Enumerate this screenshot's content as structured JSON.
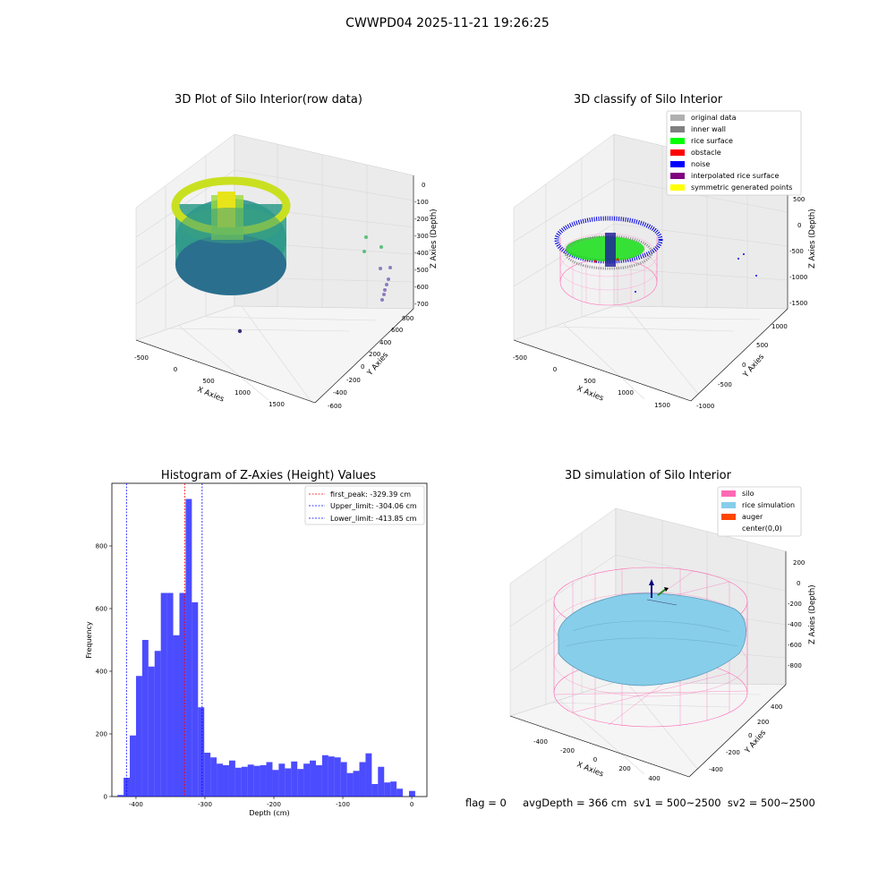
{
  "suptitle": "CWWPD04 2025-11-21 19:26:25",
  "footer": "flag = 0     avgDepth = 366 cm  sv1 = 500~2500  sv2 = 500~2500",
  "panel1": {
    "title": "3D Plot of Silo Interior(row data)",
    "xlabel": "X Axies",
    "ylabel": "Y Axies",
    "zlabel": "Z Axies (Depth)",
    "xticks": [
      "-500",
      "0",
      "500",
      "1000",
      "1500"
    ],
    "yticks": [
      "-600",
      "-400",
      "-200",
      "0",
      "200",
      "400",
      "600",
      "800"
    ],
    "zticks": [
      "0",
      "-100",
      "-200",
      "-300",
      "-400",
      "-500",
      "-600",
      "-700"
    ]
  },
  "panel2": {
    "title": "3D classify of Silo Interior",
    "xlabel": "X Axies",
    "ylabel": "Y Axies",
    "zlabel": "Z Axies (Depth)",
    "xticks": [
      "-500",
      "0",
      "500",
      "1000",
      "1500"
    ],
    "yticks": [
      "-1000",
      "-500",
      "0",
      "500",
      "1000"
    ],
    "zticks": [
      "500",
      "0",
      "-500",
      "-1000",
      "-1500"
    ],
    "legend": [
      {
        "label": "original data",
        "color": "#b0b0b0"
      },
      {
        "label": "inner wall",
        "color": "#808080"
      },
      {
        "label": "rice surface",
        "color": "#00ff00"
      },
      {
        "label": "obstacle",
        "color": "#ff0000"
      },
      {
        "label": "noise",
        "color": "#0000ff"
      },
      {
        "label": "interpolated rice surface",
        "color": "#800080"
      },
      {
        "label": "symmetric generated points",
        "color": "#ffff00"
      }
    ]
  },
  "panel4": {
    "title": "3D simulation of Silo Interior",
    "xlabel": "X Axies",
    "ylabel": "Y Axies",
    "zlabel": "Z Axies (Depth)",
    "xticks": [
      "-400",
      "-200",
      "0",
      "200",
      "400"
    ],
    "yticks": [
      "-400",
      "-200",
      "0",
      "200",
      "400"
    ],
    "zticks": [
      "200",
      "0",
      "-200",
      "-400",
      "-600",
      "-800"
    ],
    "legend": [
      {
        "label": "silo",
        "color": "#ff69b4"
      },
      {
        "label": "rice simulation",
        "color": "#87ceeb"
      },
      {
        "label": "auger",
        "color": "#ff4500"
      },
      {
        "label": "center(0,0)",
        "color": "#ffffff"
      }
    ]
  },
  "chart_data": {
    "type": "bar",
    "title": "Histogram of Z-Axies (Height) Values",
    "xlabel": "Depth (cm)",
    "ylabel": "Frequency",
    "xlim": [
      -435,
      22
    ],
    "ylim": [
      0,
      1000
    ],
    "xticks": [
      -400,
      -300,
      -200,
      -100,
      0
    ],
    "yticks": [
      0,
      200,
      400,
      600,
      800
    ],
    "bar_color": "#0000ff",
    "bins": [
      {
        "x0": -427,
        "x1": -418,
        "value": 5
      },
      {
        "x0": -418,
        "x1": -409,
        "value": 60
      },
      {
        "x0": -409,
        "x1": -400,
        "value": 195
      },
      {
        "x0": -400,
        "x1": -391,
        "value": 385
      },
      {
        "x0": -391,
        "x1": -382,
        "value": 500
      },
      {
        "x0": -382,
        "x1": -373,
        "value": 415
      },
      {
        "x0": -373,
        "x1": -364,
        "value": 465
      },
      {
        "x0": -364,
        "x1": -355,
        "value": 650
      },
      {
        "x0": -355,
        "x1": -346,
        "value": 650
      },
      {
        "x0": -346,
        "x1": -337,
        "value": 515
      },
      {
        "x0": -337,
        "x1": -328,
        "value": 650
      },
      {
        "x0": -328,
        "x1": -319,
        "value": 950
      },
      {
        "x0": -319,
        "x1": -310,
        "value": 620
      },
      {
        "x0": -310,
        "x1": -301,
        "value": 285
      },
      {
        "x0": -301,
        "x1": -292,
        "value": 140
      },
      {
        "x0": -292,
        "x1": -283,
        "value": 125
      },
      {
        "x0": -283,
        "x1": -274,
        "value": 105
      },
      {
        "x0": -274,
        "x1": -265,
        "value": 100
      },
      {
        "x0": -265,
        "x1": -256,
        "value": 115
      },
      {
        "x0": -256,
        "x1": -247,
        "value": 92
      },
      {
        "x0": -247,
        "x1": -238,
        "value": 95
      },
      {
        "x0": -238,
        "x1": -229,
        "value": 102
      },
      {
        "x0": -229,
        "x1": -220,
        "value": 98
      },
      {
        "x0": -220,
        "x1": -211,
        "value": 100
      },
      {
        "x0": -211,
        "x1": -202,
        "value": 110
      },
      {
        "x0": -202,
        "x1": -193,
        "value": 85
      },
      {
        "x0": -193,
        "x1": -184,
        "value": 105
      },
      {
        "x0": -184,
        "x1": -175,
        "value": 90
      },
      {
        "x0": -175,
        "x1": -166,
        "value": 112
      },
      {
        "x0": -166,
        "x1": -157,
        "value": 88
      },
      {
        "x0": -157,
        "x1": -148,
        "value": 105
      },
      {
        "x0": -148,
        "x1": -139,
        "value": 115
      },
      {
        "x0": -139,
        "x1": -130,
        "value": 100
      },
      {
        "x0": -130,
        "x1": -121,
        "value": 132
      },
      {
        "x0": -121,
        "x1": -112,
        "value": 128
      },
      {
        "x0": -112,
        "x1": -103,
        "value": 125
      },
      {
        "x0": -103,
        "x1": -94,
        "value": 110
      },
      {
        "x0": -94,
        "x1": -85,
        "value": 75
      },
      {
        "x0": -85,
        "x1": -76,
        "value": 82
      },
      {
        "x0": -76,
        "x1": -67,
        "value": 110
      },
      {
        "x0": -67,
        "x1": -58,
        "value": 138
      },
      {
        "x0": -58,
        "x1": -49,
        "value": 40
      },
      {
        "x0": -49,
        "x1": -40,
        "value": 95
      },
      {
        "x0": -40,
        "x1": -31,
        "value": 45
      },
      {
        "x0": -31,
        "x1": -22,
        "value": 48
      },
      {
        "x0": -22,
        "x1": -13,
        "value": 25
      },
      {
        "x0": -13,
        "x1": -4,
        "value": 0
      },
      {
        "x0": -4,
        "x1": 5,
        "value": 18
      }
    ],
    "lines": [
      {
        "label": "first_peak: -329.39 cm",
        "x": -329.39,
        "color": "#ff0000"
      },
      {
        "label": "Upper_limit: -304.06 cm",
        "x": -304.06,
        "color": "#0000ff"
      },
      {
        "label": "Lower_limit: -413.85 cm",
        "x": -413.85,
        "color": "#0000ff"
      }
    ]
  }
}
